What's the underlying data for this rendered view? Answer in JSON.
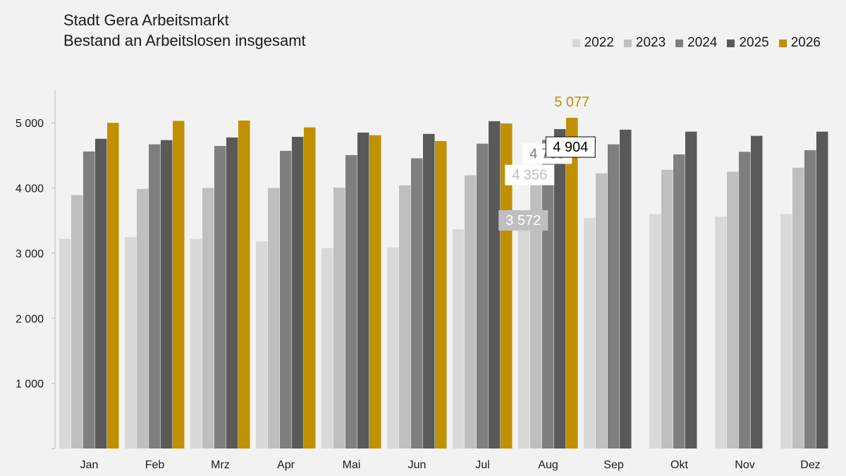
{
  "chart_data": {
    "type": "bar",
    "title": "Stadt Gera Arbeitsmarkt",
    "subtitle": "Bestand an Arbeitslosen insgesamt",
    "categories": [
      "Jan",
      "Feb",
      "Mrz",
      "Apr",
      "Mai",
      "Jun",
      "Jul",
      "Aug",
      "Sep",
      "Okt",
      "Nov",
      "Dez"
    ],
    "series": [
      {
        "name": "2022",
        "color": "#d9d9d9",
        "values": [
          3220,
          3245,
          3215,
          3180,
          3075,
          3085,
          3365,
          3572,
          3540,
          3600,
          3560,
          3600
        ]
      },
      {
        "name": "2023",
        "color": "#bfbfbf",
        "values": [
          3890,
          3985,
          4000,
          4000,
          4005,
          4040,
          4195,
          4356,
          4225,
          4280,
          4250,
          4310
        ]
      },
      {
        "name": "2024",
        "color": "#7f7f7f",
        "values": [
          4560,
          4670,
          4645,
          4570,
          4505,
          4455,
          4680,
          4738,
          4670,
          4515,
          4555,
          4580
        ]
      },
      {
        "name": "2025",
        "color": "#595959",
        "values": [
          4755,
          4735,
          4775,
          4785,
          4850,
          4830,
          5025,
          4904,
          4895,
          4865,
          4800,
          4865
        ]
      },
      {
        "name": "2026",
        "color": "#bf9000",
        "values": [
          5000,
          5030,
          5035,
          4930,
          4810,
          4720,
          4990,
          5077,
          null,
          null,
          null,
          null
        ]
      }
    ],
    "ylim": [
      0,
      5500
    ],
    "yticks": [
      1000,
      2000,
      3000,
      4000,
      5000
    ],
    "ytick_labels": [
      "1 000",
      "2 000",
      "3 000",
      "4 000",
      "5 000"
    ],
    "grid": false,
    "legend_position": "top-right",
    "data_labels": [
      {
        "category": "Aug",
        "series": "2022",
        "text": "3 572"
      },
      {
        "category": "Aug",
        "series": "2023",
        "text": "4 356"
      },
      {
        "category": "Aug",
        "series": "2024",
        "text": "4 738"
      },
      {
        "category": "Aug",
        "series": "2025",
        "text": "4 904"
      },
      {
        "category": "Aug",
        "series": "2026",
        "text": "5 077"
      }
    ]
  }
}
